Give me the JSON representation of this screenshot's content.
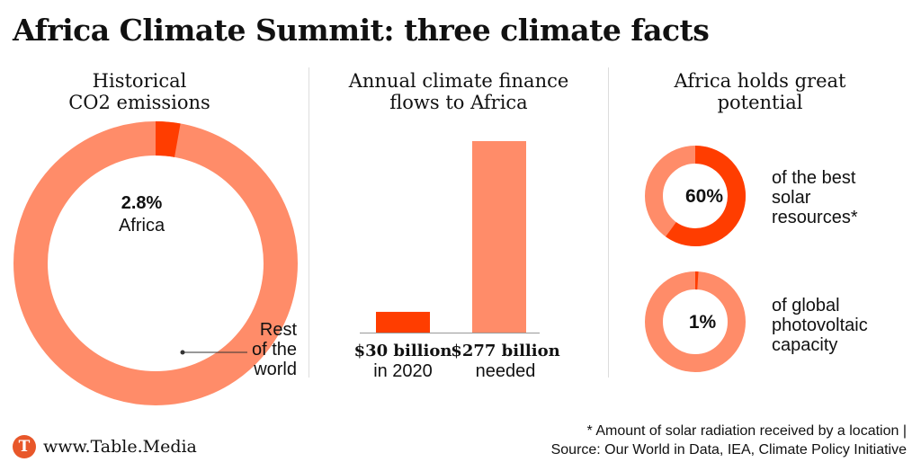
{
  "title": "Africa Climate Summit: three climate facts",
  "colors": {
    "light": "#ff8c69",
    "dark": "#ff3d00",
    "divider": "#dddddd"
  },
  "chart_data": [
    {
      "type": "pie",
      "title_lines": [
        "Historical",
        "CO2 emissions"
      ],
      "slices": [
        {
          "label": "Africa",
          "value": 2.8,
          "value_label": "2.8%"
        },
        {
          "label_lines": [
            "Rest",
            "of the",
            "world"
          ],
          "value": 97.2
        }
      ]
    },
    {
      "type": "bar",
      "title_lines": [
        "Annual climate finance",
        "flows to Africa"
      ],
      "bars": [
        {
          "value": 30,
          "value_label": "$30 billion",
          "sub_label": "in 2020"
        },
        {
          "value": 277,
          "value_label": "$277 billion",
          "sub_label": "needed"
        }
      ]
    },
    {
      "type": "pie",
      "title_lines": [
        "Africa holds great",
        "potential"
      ],
      "donuts": [
        {
          "value": 60,
          "value_label": "60%",
          "label_lines": [
            "of the best",
            "solar",
            "resources*"
          ]
        },
        {
          "value": 1,
          "value_label": "1%",
          "label_lines": [
            "of global",
            "photovoltaic",
            "capacity"
          ]
        }
      ]
    }
  ],
  "footer": {
    "note_lines": [
      "* Amount of solar radiation received by a location |",
      "Source: Our World in Data, IEA, Climate Policy Initiative"
    ],
    "brand_logo": "T",
    "brand": "www.Table.Media"
  }
}
